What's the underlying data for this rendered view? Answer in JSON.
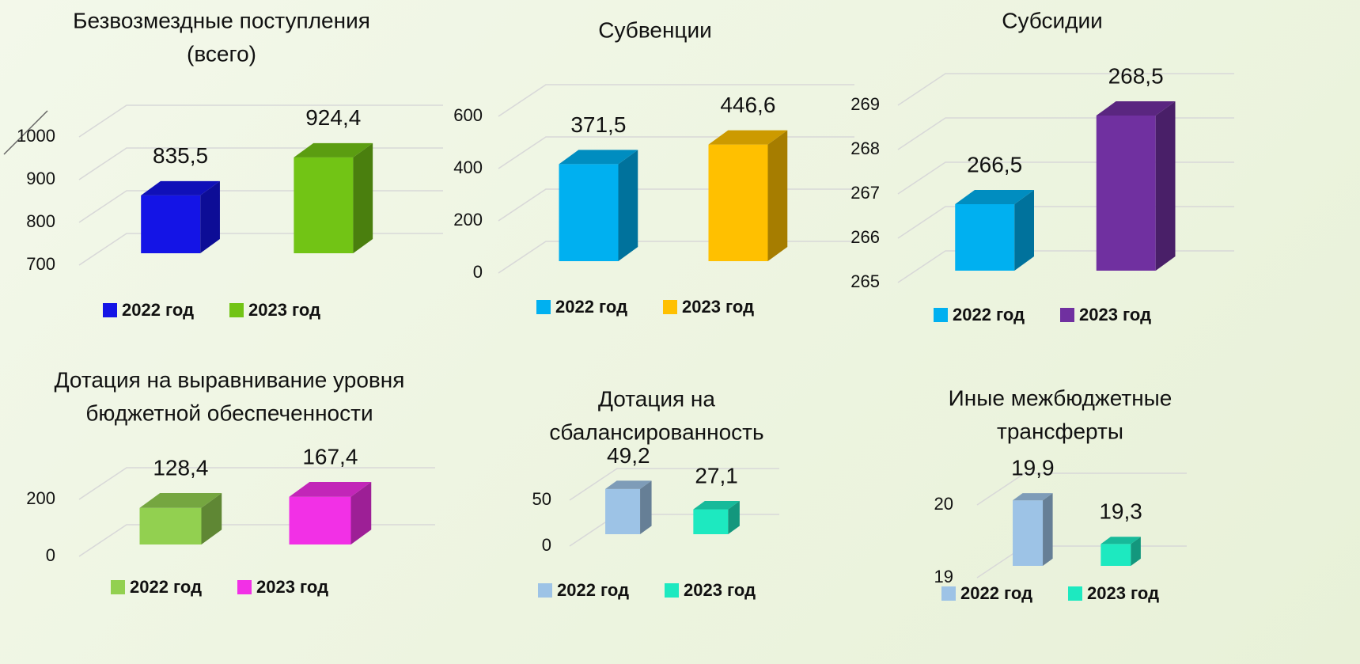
{
  "chart_data": [
    {
      "type": "bar3d",
      "title": [
        "Безвозмездные поступления",
        "(всего)"
      ],
      "ylim": [
        700,
        1000
      ],
      "yticks": [
        700,
        800,
        900,
        1000
      ],
      "series": [
        {
          "name": "2022 год",
          "color": "#1414e6",
          "values": [
            835.5
          ],
          "value_labels": [
            "835,5"
          ]
        },
        {
          "name": "2023 год",
          "color": "#72c415",
          "values": [
            924.4
          ],
          "value_labels": [
            "924,4"
          ]
        }
      ]
    },
    {
      "type": "bar3d",
      "title": [
        "Субвенции"
      ],
      "ylim": [
        0,
        600
      ],
      "yticks": [
        0,
        200,
        400,
        600
      ],
      "series": [
        {
          "name": "2022 год",
          "color": "#00b0f0",
          "values": [
            371.5
          ],
          "value_labels": [
            "371,5"
          ]
        },
        {
          "name": "2023 год",
          "color": "#ffc000",
          "values": [
            446.6
          ],
          "value_labels": [
            "446,6"
          ]
        }
      ]
    },
    {
      "type": "bar3d",
      "title": [
        "Субсидии"
      ],
      "ylim": [
        265,
        269
      ],
      "yticks": [
        265,
        266,
        267,
        268,
        269
      ],
      "series": [
        {
          "name": "2022 год",
          "color": "#00b0f0",
          "values": [
            266.5
          ],
          "value_labels": [
            "266,5"
          ]
        },
        {
          "name": "2023 год",
          "color": "#7030a0",
          "values": [
            268.5
          ],
          "value_labels": [
            "268,5"
          ]
        }
      ]
    },
    {
      "type": "bar3d",
      "title": [
        "Дотация на выравнивание уровня",
        "бюджетной обеспеченности"
      ],
      "ylim": [
        0,
        200
      ],
      "yticks": [
        0,
        200
      ],
      "series": [
        {
          "name": "2022 год",
          "color": "#92d050",
          "values": [
            128.4
          ],
          "value_labels": [
            "128,4"
          ]
        },
        {
          "name": "2023 год",
          "color": "#f230e6",
          "values": [
            167.4
          ],
          "value_labels": [
            "167,4"
          ]
        }
      ]
    },
    {
      "type": "bar3d",
      "title": [
        "Дотация на",
        "сбалансированность"
      ],
      "ylim": [
        0,
        50
      ],
      "yticks": [
        0,
        50
      ],
      "series": [
        {
          "name": "2022 год",
          "color": "#9dc3e6",
          "values": [
            49.2
          ],
          "value_labels": [
            "49,2"
          ]
        },
        {
          "name": "2023 год",
          "color": "#1de9c0",
          "values": [
            27.1
          ],
          "value_labels": [
            "27,1"
          ]
        }
      ]
    },
    {
      "type": "bar3d",
      "title": [
        "Иные межбюджетные",
        "трансферты"
      ],
      "ylim": [
        19,
        20
      ],
      "yticks": [
        19,
        20
      ],
      "series": [
        {
          "name": "2022 год",
          "color": "#9dc3e6",
          "values": [
            19.9
          ],
          "value_labels": [
            "19,9"
          ]
        },
        {
          "name": "2023 год",
          "color": "#1de9c0",
          "values": [
            19.3
          ],
          "value_labels": [
            "19,3"
          ]
        }
      ]
    }
  ]
}
